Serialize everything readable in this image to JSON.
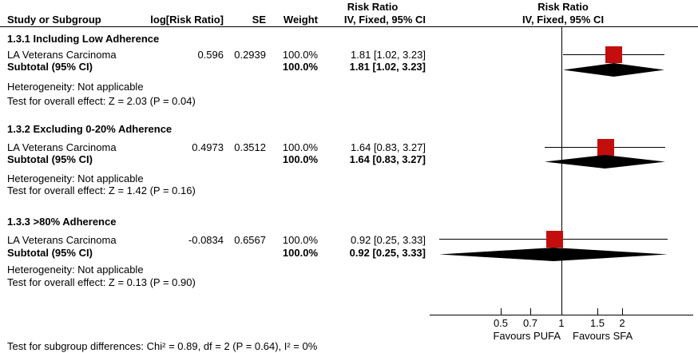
{
  "stats_header": {
    "line1": "Risk Ratio",
    "line2": "IV, Fixed, 95% CI"
  },
  "plot_header": {
    "line1": "Risk Ratio",
    "line2": "IV, Fixed, 95% CI"
  },
  "columns": {
    "study": "Study or Subgroup",
    "log_rr": "log[Risk Ratio]",
    "se": "SE",
    "weight": "Weight",
    "estimate": "IV, Fixed, 95% CI"
  },
  "sections": [
    {
      "heading": "1.3.1 Including Low Adherence",
      "study": {
        "name": "LA Veterans Carcinoma",
        "log_rr": "0.596",
        "se": "0.2939",
        "weight": "100.0%",
        "estimate": "1.81 [1.02, 3.23]"
      },
      "subtotal": {
        "label": "Subtotal (95% CI)",
        "weight": "100.0%",
        "estimate": "1.81 [1.02, 3.23]"
      },
      "heterogeneity": "Heterogeneity: Not applicable",
      "overall_test": "Test for overall effect: Z = 2.03 (P = 0.04)"
    },
    {
      "heading": "1.3.2 Excluding 0-20% Adherence",
      "study": {
        "name": "LA Veterans Carcinoma",
        "log_rr": "0.4973",
        "se": "0.3512",
        "weight": "100.0%",
        "estimate": "1.64 [0.83, 3.27]"
      },
      "subtotal": {
        "label": "Subtotal (95% CI)",
        "weight": "100.0%",
        "estimate": "1.64 [0.83, 3.27]"
      },
      "heterogeneity": "Heterogeneity: Not applicable",
      "overall_test": "Test for overall effect: Z = 1.42 (P = 0.16)"
    },
    {
      "heading": "1.3.3 >80% Adherence",
      "study": {
        "name": "LA Veterans Carcinoma",
        "log_rr": "-0.0834",
        "se": "0.6567",
        "weight": "100.0%",
        "estimate": "0.92 [0.25, 3.33]"
      },
      "subtotal": {
        "label": "Subtotal (95% CI)",
        "weight": "100.0%",
        "estimate": "0.92 [0.25, 3.33]"
      },
      "heterogeneity": "Heterogeneity: Not applicable",
      "overall_test": "Test for overall effect: Z = 0.13 (P = 0.90)"
    }
  ],
  "footer": {
    "subgroup_test": "Test for subgroup differences: Chi² = 0.89, df = 2 (P = 0.64), I² = 0%"
  },
  "colors": {
    "marker_red": "#c40d0d",
    "line_black": "#000000"
  },
  "chart_data": {
    "type": "forest",
    "effect_measure": "Risk Ratio",
    "model": "IV, Fixed, 95% CI",
    "x_scale": "log",
    "axis_range_approx": [
      0.22,
      4.5
    ],
    "ticks": [
      0.5,
      0.7,
      1,
      1.5,
      2
    ],
    "null_line": 1,
    "favours_left": "Favours PUFA",
    "favours_right": "Favours SFA",
    "groups": [
      {
        "name": "1.3.1 Including Low Adherence",
        "studies": [
          {
            "label": "LA Veterans Carcinoma",
            "log_rr": 0.596,
            "se": 0.2939,
            "weight_pct": 100.0,
            "rr": 1.81,
            "ci_low": 1.02,
            "ci_high": 3.23
          }
        ],
        "subtotal": {
          "rr": 1.81,
          "ci_low": 1.02,
          "ci_high": 3.23,
          "z": 2.03,
          "p": 0.04
        }
      },
      {
        "name": "1.3.2 Excluding 0-20% Adherence",
        "studies": [
          {
            "label": "LA Veterans Carcinoma",
            "log_rr": 0.4973,
            "se": 0.3512,
            "weight_pct": 100.0,
            "rr": 1.64,
            "ci_low": 0.83,
            "ci_high": 3.27
          }
        ],
        "subtotal": {
          "rr": 1.64,
          "ci_low": 0.83,
          "ci_high": 3.27,
          "z": 1.42,
          "p": 0.16
        }
      },
      {
        "name": "1.3.3 >80% Adherence",
        "studies": [
          {
            "label": "LA Veterans Carcinoma",
            "log_rr": -0.0834,
            "se": 0.6567,
            "weight_pct": 100.0,
            "rr": 0.92,
            "ci_low": 0.25,
            "ci_high": 3.33
          }
        ],
        "subtotal": {
          "rr": 0.92,
          "ci_low": 0.25,
          "ci_high": 3.33,
          "z": 0.13,
          "p": 0.9
        }
      }
    ]
  }
}
